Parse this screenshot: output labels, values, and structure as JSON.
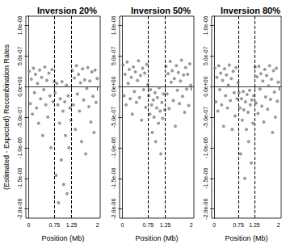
{
  "chart_data": [
    {
      "type": "scatter",
      "title": "Inversion 20%",
      "x_label": "Position (Mb)",
      "y_label": "(Estimated - Expected) Recombination Rates",
      "color": "#808080",
      "marker": "circle",
      "grid": false,
      "xlim": [
        -0.08,
        2.08
      ],
      "xticks": [
        0,
        0.75,
        1.25,
        2
      ],
      "ylim": [
        -2.15e-06,
        1.15e-06
      ],
      "yticks": [
        {
          "value": 1e-06,
          "label": "1.0e-06"
        },
        {
          "value": 5e-07,
          "label": "5.0e-07"
        },
        {
          "value": 0,
          "label": "0.0e+00"
        },
        {
          "value": -5e-07,
          "label": "-5.0e-07"
        },
        {
          "value": -1e-06,
          "label": "-1.0e-06"
        },
        {
          "value": -1.5e-06,
          "label": "-1.5e-06"
        },
        {
          "value": -2e-06,
          "label": "-2.0e-06"
        }
      ],
      "vlines": [
        0.75,
        1.25
      ],
      "x": [
        0.02,
        0.05,
        0.08,
        0.11,
        0.14,
        0.17,
        0.2,
        0.23,
        0.26,
        0.29,
        0.32,
        0.35,
        0.38,
        0.41,
        0.44,
        0.47,
        0.5,
        0.53,
        0.56,
        0.59,
        0.62,
        0.65,
        0.68,
        0.71,
        0.74,
        0.77,
        0.8,
        0.82,
        0.85,
        0.87,
        0.9,
        0.92,
        0.95,
        0.97,
        1.0,
        1.02,
        1.05,
        1.07,
        1.1,
        1.12,
        1.15,
        1.17,
        1.2,
        1.23,
        1.27,
        1.3,
        1.33,
        1.36,
        1.39,
        1.42,
        1.45,
        1.48,
        1.51,
        1.54,
        1.57,
        1.6,
        1.63,
        1.66,
        1.69,
        1.72,
        1.75,
        1.78,
        1.81,
        1.84,
        1.87,
        1.9,
        1.93,
        1.96,
        1.99
      ],
      "values": [
        2.5e-07,
        -2.8e-07,
        1.2e-07,
        -4.5e-07,
        3e-07,
        -1e-07,
        2e-07,
        -3.5e-07,
        5e-08,
        -6e-07,
        2.7e-07,
        -2e-07,
        1.5e-07,
        -8e-07,
        -5e-08,
        3.2e-07,
        -3e-07,
        1e-07,
        -5e-07,
        2.2e-07,
        -1.5e-07,
        -1e-06,
        2.8e-07,
        -2.5e-07,
        8e-08,
        -1e-07,
        -1.45e-06,
        5e-08,
        -3e-07,
        -1.9e-06,
        -6e-07,
        -2e-07,
        -1.2e-06,
        8e-08,
        -4e-07,
        -1.6e-06,
        -2.5e-07,
        -8e-07,
        2e-08,
        -1.75e-06,
        -1.5e-07,
        -1e-06,
        -3.5e-07,
        -5.5e-07,
        2.6e-07,
        -3e-07,
        1.4e-07,
        -7e-07,
        3.4e-07,
        -1.2e-07,
        2e-07,
        -4e-07,
        6e-08,
        -9e-07,
        2.9e-07,
        -2.2e-07,
        1.1e-07,
        -1.1e-06,
        -3e-08,
        3.1e-07,
        -3.3e-07,
        9e-08,
        -5.8e-07,
        2.4e-07,
        -1.6e-07,
        -7.5e-07,
        2.7e-07,
        -2.6e-07,
        1.3e-07
      ]
    },
    {
      "type": "scatter",
      "title": "Inversion 50%",
      "x_label": "Position (Mb)",
      "color": "#808080",
      "marker": "circle",
      "grid": false,
      "xlim": [
        -0.08,
        2.08
      ],
      "xticks": [
        0,
        0.75,
        1.25,
        2
      ],
      "ylim": [
        -2.15e-06,
        1.15e-06
      ],
      "yticks": [
        {
          "value": 1e-06,
          "label": "1.0e-06"
        },
        {
          "value": 5e-07,
          "label": "5.0e-07"
        },
        {
          "value": 0,
          "label": "0.0e+00"
        },
        {
          "value": -5e-07,
          "label": "-5.0e-07"
        },
        {
          "value": -1e-06,
          "label": "-1.0e-06"
        },
        {
          "value": -1.5e-06,
          "label": "-1.5e-06"
        },
        {
          "value": -2e-06,
          "label": "-2.0e-06"
        }
      ],
      "vlines": [
        0.75,
        1.25
      ],
      "x": [
        0.02,
        0.05,
        0.08,
        0.11,
        0.14,
        0.17,
        0.2,
        0.23,
        0.26,
        0.29,
        0.32,
        0.35,
        0.38,
        0.41,
        0.44,
        0.47,
        0.5,
        0.53,
        0.56,
        0.59,
        0.62,
        0.65,
        0.68,
        0.71,
        0.74,
        0.77,
        0.8,
        0.82,
        0.85,
        0.87,
        0.9,
        0.92,
        0.95,
        0.97,
        1.0,
        1.02,
        1.05,
        1.07,
        1.1,
        1.12,
        1.15,
        1.17,
        1.2,
        1.23,
        1.27,
        1.3,
        1.33,
        1.36,
        1.39,
        1.42,
        1.45,
        1.48,
        1.51,
        1.54,
        1.57,
        1.6,
        1.63,
        1.66,
        1.69,
        1.72,
        1.75,
        1.78,
        1.81,
        1.84,
        1.87,
        1.9,
        1.93,
        1.96,
        1.99
      ],
      "values": [
        3.5e-07,
        -1.5e-07,
        2e-07,
        -3e-07,
        4e-07,
        5e-08,
        2.8e-07,
        -2e-07,
        1.5e-07,
        -4.5e-07,
        3.2e-07,
        -8e-08,
        2.4e-07,
        -2.6e-07,
        1e-07,
        4.2e-07,
        -1.8e-07,
        1.8e-07,
        -5.5e-07,
        3e-07,
        -5e-08,
        2.2e-07,
        -3.4e-07,
        3.6e-07,
        3e-08,
        -1.5e-07,
        -4.5e-07,
        -5e-08,
        -3e-07,
        -7.5e-07,
        -2.2e-07,
        -5e-07,
        -1e-07,
        -9e-07,
        -3.5e-07,
        -1.8e-07,
        -6e-07,
        -2e-08,
        -4e-07,
        -1.1e-06,
        -2.6e-07,
        -5.2e-07,
        -1.2e-07,
        -3.8e-07,
        3.3e-07,
        -1.2e-07,
        2.1e-07,
        -3.6e-07,
        4.1e-07,
        7e-08,
        2.6e-07,
        -2.3e-07,
        1.3e-07,
        -6.5e-07,
        3.4e-07,
        -6e-08,
        2.3e-07,
        -2.8e-07,
        9e-08,
        4.3e-07,
        -1.6e-07,
        1.9e-07,
        -4.2e-07,
        3.1e-07,
        -4e-08,
        2e-07,
        -3.1e-07,
        3.7e-07,
        2e-08
      ]
    },
    {
      "type": "scatter",
      "title": "Inversion 80%",
      "x_label": "Position (Mb)",
      "color": "#808080",
      "marker": "circle",
      "grid": false,
      "xlim": [
        -0.08,
        2.08
      ],
      "xticks": [
        0,
        0.75,
        1.25,
        2
      ],
      "ylim": [
        -2.15e-06,
        1.15e-06
      ],
      "yticks": [
        {
          "value": 1e-06,
          "label": "1.0e-06"
        },
        {
          "value": 5e-07,
          "label": "5.0e-07"
        },
        {
          "value": 0,
          "label": "0.0e+00"
        },
        {
          "value": -5e-07,
          "label": "-5.0e-07"
        },
        {
          "value": -1e-06,
          "label": "-1.0e-06"
        },
        {
          "value": -1.5e-06,
          "label": "-1.5e-06"
        },
        {
          "value": -2e-06,
          "label": "-2.0e-06"
        }
      ],
      "vlines": [
        0.75,
        1.25
      ],
      "x": [
        0.02,
        0.05,
        0.08,
        0.11,
        0.14,
        0.17,
        0.2,
        0.23,
        0.26,
        0.29,
        0.32,
        0.35,
        0.38,
        0.41,
        0.44,
        0.47,
        0.5,
        0.53,
        0.56,
        0.59,
        0.62,
        0.65,
        0.68,
        0.71,
        0.74,
        0.77,
        0.8,
        0.82,
        0.85,
        0.87,
        0.9,
        0.92,
        0.95,
        0.97,
        1.0,
        1.02,
        1.05,
        1.07,
        1.1,
        1.12,
        1.15,
        1.17,
        1.2,
        1.23,
        1.27,
        1.3,
        1.33,
        1.36,
        1.39,
        1.42,
        1.45,
        1.48,
        1.51,
        1.54,
        1.57,
        1.6,
        1.63,
        1.66,
        1.69,
        1.72,
        1.75,
        1.78,
        1.81,
        1.84,
        1.87,
        1.9,
        1.93,
        1.96,
        1.99
      ],
      "values": [
        3e-07,
        -2.5e-07,
        1.5e-07,
        -4e-07,
        3.4e-07,
        -5e-08,
        2.2e-07,
        -3e-07,
        1e-07,
        -6.5e-07,
        2.9e-07,
        -1.5e-07,
        1.9e-07,
        -3.5e-07,
        2e-08,
        3.5e-07,
        -2.3e-07,
        1.3e-07,
        -7e-07,
        2.5e-07,
        -1e-07,
        -4.8e-07,
        3.1e-07,
        -2e-07,
        6e-08,
        -1e-07,
        -3.5e-07,
        -1.1e-06,
        -2e-07,
        -5.5e-07,
        -8e-08,
        -3.8e-07,
        -1.5e-06,
        -2.5e-07,
        -7e-07,
        -1.3e-07,
        -4.2e-07,
        -9e-07,
        -6e-08,
        -3e-07,
        -1.25e-06,
        -2.2e-07,
        -6e-07,
        -1.5e-07,
        3.2e-07,
        -2.7e-07,
        1.6e-07,
        -4.4e-07,
        3.3e-07,
        -4e-08,
        2.1e-07,
        -3.2e-07,
        9e-08,
        -5.8e-07,
        2.8e-07,
        -1.7e-07,
        1.8e-07,
        -3.7e-07,
        1e-08,
        3.4e-07,
        -2.1e-07,
        1.2e-07,
        -7.5e-07,
        2.6e-07,
        -9e-08,
        -5e-07,
        3e-07,
        -2.4e-07,
        7e-08
      ]
    }
  ]
}
